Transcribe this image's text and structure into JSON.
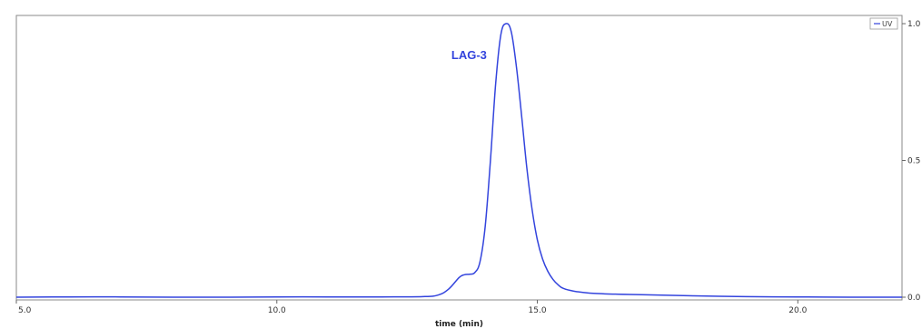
{
  "chart_data": {
    "type": "line",
    "title": "",
    "xlabel": "time (min)",
    "ylabel": "",
    "xlim": [
      5.0,
      22.0
    ],
    "ylim": [
      -0.01,
      1.03
    ],
    "x_ticks": [
      5.0,
      10.0,
      15.0,
      20.0
    ],
    "x_tick_labels": [
      "5.0",
      "10.0",
      "15.0",
      "20.0"
    ],
    "y_ticks": [
      0.0,
      0.5,
      1.0
    ],
    "y_tick_labels": [
      "0.0",
      "0.5",
      "1.0"
    ],
    "y_axis_side": "right",
    "grid": false,
    "legend": {
      "position": "top-right",
      "entries": [
        "UV"
      ]
    },
    "annotations": [
      {
        "text": "LAG-3",
        "x": 13.35,
        "y": 0.87
      }
    ],
    "series": [
      {
        "name": "UV",
        "color": "#3344dd",
        "x": [
          5.0,
          6.0,
          7.0,
          8.0,
          9.0,
          10.0,
          11.0,
          12.0,
          12.8,
          13.1,
          13.3,
          13.5,
          13.6,
          13.7,
          13.8,
          13.9,
          14.0,
          14.1,
          14.2,
          14.3,
          14.4,
          14.5,
          14.6,
          14.7,
          14.8,
          14.9,
          15.0,
          15.1,
          15.2,
          15.3,
          15.4,
          15.5,
          15.7,
          16.0,
          16.5,
          17.0,
          18.0,
          19.0,
          20.0,
          21.0,
          22.0
        ],
        "y": [
          0.0,
          0.001,
          0.001,
          0.0,
          0.0,
          0.001,
          0.001,
          0.001,
          0.002,
          0.008,
          0.03,
          0.072,
          0.082,
          0.084,
          0.09,
          0.13,
          0.26,
          0.5,
          0.78,
          0.96,
          1.0,
          0.97,
          0.84,
          0.66,
          0.47,
          0.32,
          0.21,
          0.14,
          0.095,
          0.065,
          0.045,
          0.032,
          0.022,
          0.015,
          0.011,
          0.009,
          0.005,
          0.002,
          0.001,
          0.0,
          0.0
        ]
      }
    ]
  }
}
